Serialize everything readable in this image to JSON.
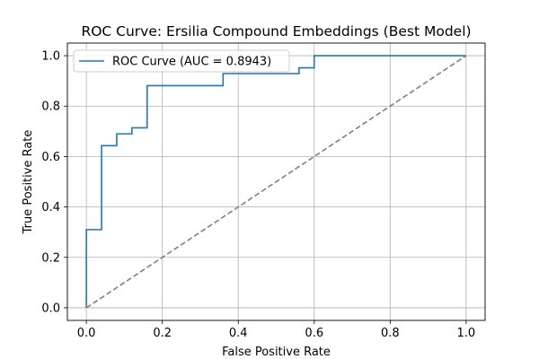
{
  "chart_data": {
    "type": "line",
    "title": "ROC Curve: Ersilia Compound Embeddings (Best Model)",
    "xlabel": "False Positive Rate",
    "ylabel": "True Positive Rate",
    "xlim": [
      -0.05,
      1.05
    ],
    "ylim": [
      -0.05,
      1.05
    ],
    "xticks": [
      0.0,
      0.2,
      0.4,
      0.6,
      0.8,
      1.0
    ],
    "yticks": [
      0.0,
      0.2,
      0.4,
      0.6,
      0.8,
      1.0
    ],
    "xtick_labels": [
      "0.0",
      "0.2",
      "0.4",
      "0.6",
      "0.8",
      "1.0"
    ],
    "ytick_labels": [
      "0.0",
      "0.2",
      "0.4",
      "0.6",
      "0.8",
      "1.0"
    ],
    "grid": true,
    "legend_position": "top-left",
    "series": [
      {
        "name": "ROC Curve (AUC = 0.8943)",
        "color": "#1f77b4",
        "style": "solid",
        "x": [
          0.0,
          0.0,
          0.04,
          0.04,
          0.08,
          0.08,
          0.12,
          0.12,
          0.16,
          0.16,
          0.36,
          0.36,
          0.56,
          0.56,
          0.6,
          0.6,
          1.0
        ],
        "y": [
          0.0,
          0.31,
          0.31,
          0.643,
          0.643,
          0.69,
          0.69,
          0.714,
          0.714,
          0.881,
          0.881,
          0.929,
          0.929,
          0.952,
          0.952,
          1.0,
          1.0
        ]
      },
      {
        "name": "",
        "color": "#808080",
        "style": "dashed",
        "x": [
          0.0,
          1.0
        ],
        "y": [
          0.0,
          1.0
        ]
      }
    ]
  }
}
